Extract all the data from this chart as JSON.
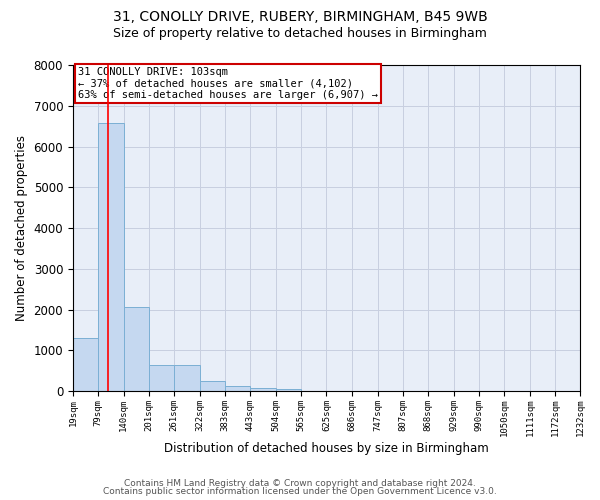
{
  "title1": "31, CONOLLY DRIVE, RUBERY, BIRMINGHAM, B45 9WB",
  "title2": "Size of property relative to detached houses in Birmingham",
  "xlabel": "Distribution of detached houses by size in Birmingham",
  "ylabel": "Number of detached properties",
  "bar_edges": [
    19,
    79,
    140,
    201,
    261,
    322,
    383,
    443,
    504,
    565,
    625,
    686,
    747,
    807,
    868,
    929,
    990,
    1050,
    1111,
    1172,
    1232
  ],
  "bar_heights": [
    1300,
    6580,
    2070,
    640,
    640,
    240,
    130,
    90,
    60,
    0,
    0,
    0,
    0,
    0,
    0,
    0,
    0,
    0,
    0,
    0
  ],
  "bar_color": "#c5d8f0",
  "bar_edge_color": "#7bafd4",
  "grid_color": "#c8cfe0",
  "background_color": "#e8eef8",
  "red_line_x": 103,
  "ylim": [
    0,
    8000
  ],
  "xlim_left": 19,
  "xlim_right": 1232,
  "annotation_text": "31 CONOLLY DRIVE: 103sqm\n← 37% of detached houses are smaller (4,102)\n63% of semi-detached houses are larger (6,907) →",
  "annotation_box_color": "#ffffff",
  "annotation_box_edge": "#cc0000",
  "footer1": "Contains HM Land Registry data © Crown copyright and database right 2024.",
  "footer2": "Contains public sector information licensed under the Open Government Licence v3.0.",
  "title1_fontsize": 10,
  "title2_fontsize": 9,
  "xlabel_fontsize": 8.5,
  "ylabel_fontsize": 8.5,
  "tick_fontsize": 6.5,
  "annotation_fontsize": 7.5,
  "footer_fontsize": 6.5
}
